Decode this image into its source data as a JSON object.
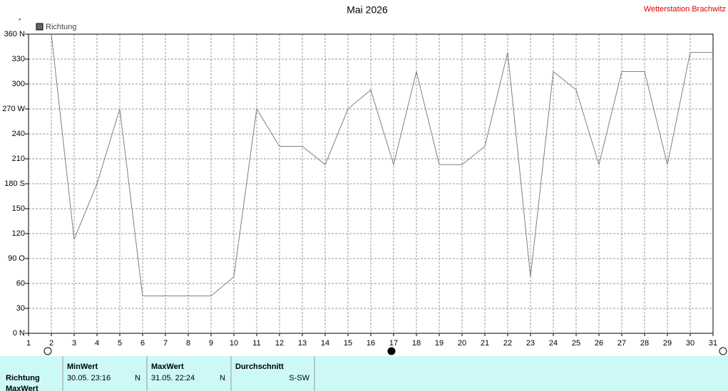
{
  "chart_data": {
    "type": "line",
    "title": "Mai 2026",
    "station": "Wetterstation Brachwitz",
    "unit": "°",
    "x": [
      1,
      2,
      3,
      4,
      5,
      6,
      7,
      8,
      9,
      10,
      11,
      12,
      13,
      14,
      15,
      16,
      17,
      18,
      19,
      20,
      21,
      22,
      23,
      24,
      25,
      26,
      27,
      28,
      29,
      30,
      31
    ],
    "xlim": [
      1,
      31
    ],
    "xticks": [
      1,
      2,
      3,
      4,
      5,
      6,
      7,
      8,
      9,
      10,
      11,
      12,
      13,
      14,
      15,
      16,
      17,
      18,
      19,
      20,
      21,
      22,
      23,
      24,
      25,
      26,
      27,
      28,
      29,
      30,
      31
    ],
    "series": [
      {
        "name": "Richtung",
        "color": "#808080",
        "values": [
          null,
          360,
          113,
          180,
          270,
          45,
          45,
          45,
          45,
          68,
          270,
          225,
          225,
          203,
          270,
          293,
          203,
          315,
          203,
          203,
          225,
          338,
          68,
          315,
          293,
          203,
          315,
          315,
          203,
          338,
          338
        ]
      }
    ],
    "ylim": [
      0,
      360
    ],
    "yticks": [
      {
        "value": 0,
        "label": "0  N"
      },
      30,
      60,
      {
        "value": 90,
        "label": "90  O"
      },
      120,
      150,
      {
        "value": 180,
        "label": "180 S"
      },
      210,
      240,
      {
        "value": 270,
        "label": "270 W"
      },
      300,
      330,
      {
        "value": 360,
        "label": "360 N"
      }
    ],
    "grid": true
  },
  "table": {
    "row_label": "Richtung",
    "next_row_label": "MaxWert",
    "min": {
      "header": "MinWert",
      "time": "30.05.  23:16",
      "direction": "N"
    },
    "max": {
      "header": "MaxWert",
      "time": "31.05.  22:24",
      "direction": "N"
    },
    "avg": {
      "header": "Durchschnitt",
      "direction": "S-SW"
    }
  }
}
